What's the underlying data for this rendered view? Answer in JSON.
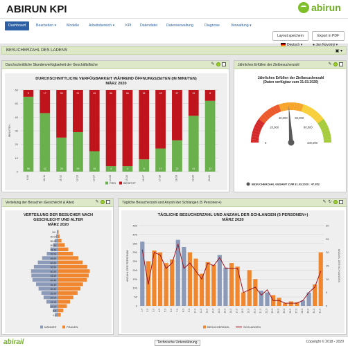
{
  "app": {
    "title": "ABIRUN KPI",
    "logo_text": "abirun",
    "brand_color": "#7fbf2a"
  },
  "nav": {
    "items": [
      {
        "label": "Dashboard",
        "active": true
      },
      {
        "label": "Bearbeiten ▾"
      },
      {
        "label": "Modelle"
      },
      {
        "label": "Arbeitsbereich ▾"
      },
      {
        "label": "KPI"
      },
      {
        "label": "Datendatei"
      },
      {
        "label": "Datenverwaltung"
      },
      {
        "label": "Diagnose"
      },
      {
        "label": "Verwaltung ▾"
      }
    ],
    "language": "Deutsch ▾",
    "user": "Jan Novotný ▾",
    "save_layout": "Layout speichern",
    "export_pdf": "Export in PDF"
  },
  "section": {
    "title": "BESUCHERZAHL DES LADENS"
  },
  "panels": {
    "availability": {
      "header": "Durchschnittliche Stundenverfügbarkeit der Geschäftsfläche",
      "title1": "DURCHSCHNITTLICHE VERFÜGBARKEIT WÄHREND ÖFFNUNGSZEITEN (IN MINUTEN)",
      "title2": "MÄRZ 2020",
      "ylabel": "MINUTEN"
    },
    "goal": {
      "header": "Jährliches Erfüllen der Zielbesucherzahl",
      "title1": "Jährliches Erfüllen der Zielbesucherzahl",
      "title2": "(Daten verfügbar zum 31.03.2020)",
      "ticks": [
        "0",
        "20,000",
        "40,000",
        "60,000",
        "80,000",
        "100,000"
      ],
      "legend": "BESUCHERZAHL GESAMT ZUM 31.03.2020 : 47.952"
    },
    "pyramid": {
      "header": "Verteilung der Besucher (Geschlecht & Alter)",
      "title1": "VERTEILUNG DER BESUCHER NACH",
      "title2": "GESCHLECHT UND ALTER",
      "title3": "MÄRZ 2020"
    },
    "daily": {
      "header": "Tägliche Besucherzahl und Anzahl der Schlangen (5 Personen+)",
      "title1": "TÄGLICHE BESUCHERZAHL UND ANZAHL DER SCHLANGEN (5 PERSONEN+)",
      "title2": "MÄRZ 2020",
      "ylabel_left": "ANZAHL DER PERSONEN",
      "ylabel_right": "ANZAHL DER SCHLANGEN"
    }
  },
  "footer": {
    "logo": "abirail",
    "support": "Technische Unterstützung",
    "copyright": "Copyright © 2018 - 2020"
  },
  "chart_data": [
    {
      "type": "bar",
      "title": "DURCHSCHNITTLICHE VERFÜGBARKEIT WÄHREND ÖFFNUNGSZEITEN (IN MINUTEN)",
      "subtitle": "MÄRZ 2020",
      "ylabel": "MINUTEN",
      "stacked": true,
      "ylim": [
        0,
        60
      ],
      "yticks": [
        0,
        10,
        20,
        30,
        40,
        50,
        60
      ],
      "categories": [
        "9-10",
        "10-11",
        "11-12",
        "12-13",
        "13-14",
        "14-15",
        "15-16",
        "16-17",
        "17-18",
        "18-19",
        "19-20",
        "20-21"
      ],
      "series": [
        {
          "name": "FREI",
          "color": "#6ab04c",
          "values": [
            55,
            43,
            25,
            29,
            15,
            4,
            4,
            9,
            17,
            23,
            41,
            52
          ]
        },
        {
          "name": "BESETZT",
          "color": "#c0141c",
          "values": [
            5,
            17,
            35,
            31,
            45,
            56,
            56,
            51,
            43,
            37,
            19,
            8
          ]
        }
      ],
      "legend": "bottom"
    },
    {
      "type": "gauge",
      "title": "Jährliches Erfüllen der Zielbesucherzahl",
      "value": 47952,
      "min": 0,
      "max": 100000
    },
    {
      "type": "bar",
      "orientation": "horizontal",
      "title": "VERTEILUNG DER BESUCHER NACH GESCHLECHT UND ALTER",
      "subtitle": "MÄRZ 2020",
      "categories": [
        "95+",
        "90-94",
        "85-89",
        "80-84",
        "75-79",
        "70-74",
        "65-69",
        "60-64",
        "55-59",
        "50-54",
        "45-49",
        "40-44",
        "35-39",
        "30-34",
        "25-29",
        "20-24",
        "15-19",
        "10-14",
        "5-9",
        "0-4"
      ],
      "xlim": [
        -12,
        12
      ],
      "series": [
        {
          "name": "MÄNNER",
          "color": "#8a9ab8",
          "values": [
            0.2,
            0.4,
            0.7,
            1.2,
            2.0,
            3.0,
            4.3,
            5.5,
            6.6,
            7.4,
            7.3,
            7.0,
            6.0,
            5.3,
            4.5,
            3.9,
            3.1,
            2.1,
            1.3,
            0.7
          ]
        },
        {
          "name": "FRAUEN",
          "color": "#f0862e",
          "values": [
            0.3,
            0.6,
            1.1,
            2.0,
            3.0,
            4.3,
            5.8,
            7.0,
            8.3,
            9.0,
            8.7,
            8.2,
            7.1,
            6.4,
            5.6,
            4.4,
            3.5,
            2.6,
            1.6,
            0.9
          ]
        }
      ],
      "legend": "bottom"
    },
    {
      "type": "bar",
      "title": "TÄGLICHE BESUCHERZAHL UND ANZAHL DER SCHLANGEN (5 PERSONEN+)",
      "subtitle": "MÄRZ 2020",
      "ylabel": "ANZAHL DER PERSONEN",
      "y2label": "ANZAHL DER SCHLANGEN",
      "ylim": [
        0,
        450
      ],
      "yticks": [
        0,
        50,
        100,
        150,
        200,
        250,
        300,
        350,
        400,
        450
      ],
      "y2lim": [
        0,
        30
      ],
      "y2ticks": [
        0,
        5,
        10,
        15,
        20,
        25,
        30
      ],
      "categories": [
        "1.3",
        "2.3",
        "3.3",
        "4.3",
        "5.3",
        "6.3",
        "7.3",
        "8.3",
        "9.3",
        "10.3",
        "11.3",
        "12.3",
        "13.3",
        "14.3",
        "15.3",
        "16.3",
        "17.3",
        "18.3",
        "19.3",
        "20.3",
        "21.3",
        "22.3",
        "23.3",
        "24.3",
        "25.3",
        "26.3",
        "27.3",
        "28.3",
        "29.3",
        "30.3",
        "31.3"
      ],
      "series": [
        {
          "name": "BESUCHERZAHL",
          "color": "#f0862e",
          "values": [
            360,
            250,
            310,
            300,
            240,
            260,
            370,
            330,
            300,
            265,
            180,
            245,
            230,
            285,
            215,
            240,
            220,
            75,
            200,
            150,
            85,
            75,
            60,
            45,
            15,
            25,
            20,
            30,
            75,
            120,
            300
          ],
          "highlight_color": "#8a9ab8",
          "highlighted": [
            0,
            6,
            7,
            13,
            14,
            20,
            21,
            27,
            28
          ]
        },
        {
          "name": "SCHLANGEN",
          "type": "line",
          "axis": "right",
          "color": "#9b1420",
          "values": [
            21,
            8,
            20,
            19,
            14,
            16,
            23,
            14,
            16,
            13,
            10,
            16,
            15,
            18,
            14,
            14,
            14,
            5,
            6,
            7,
            4,
            6,
            2,
            2,
            1,
            1,
            1,
            2,
            5,
            7,
            13
          ]
        }
      ],
      "legend": "bottom"
    }
  ]
}
